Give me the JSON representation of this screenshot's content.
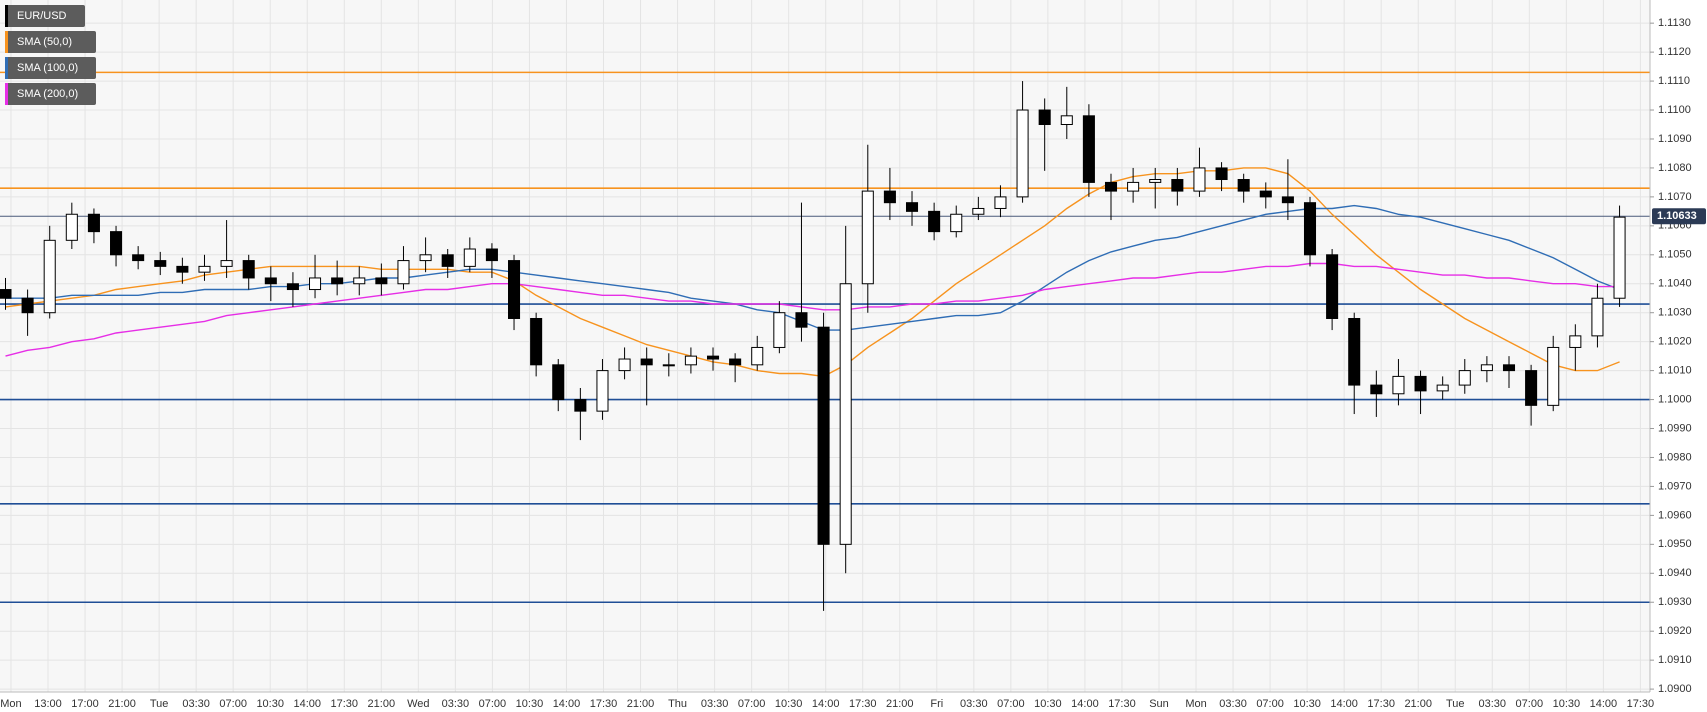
{
  "chart_data": {
    "type": "candlestick",
    "symbol": "EUR/USD",
    "time_labels": [
      "Mon",
      "13:00",
      "17:00",
      "21:00",
      "Tue",
      "03:30",
      "07:00",
      "10:30",
      "14:00",
      "17:30",
      "21:00",
      "Wed",
      "03:30",
      "07:00",
      "10:30",
      "14:00",
      "17:30",
      "21:00",
      "Thu",
      "03:30",
      "07:00",
      "10:30",
      "14:00",
      "17:30",
      "21:00",
      "Fri",
      "03:30",
      "07:00",
      "10:30",
      "14:00",
      "17:30",
      "Sun",
      "Mon",
      "03:30",
      "07:00",
      "10:30",
      "14:00",
      "17:30",
      "21:00",
      "Tue",
      "03:30",
      "07:00",
      "10:30",
      "14:00",
      "17:30"
    ],
    "open": [
      1.1038,
      1.1035,
      1.103,
      1.1055,
      1.1064,
      1.1058,
      1.105,
      1.1048,
      1.1046,
      1.1044,
      1.1046,
      1.1048,
      1.1042,
      1.104,
      1.1038,
      1.1042,
      1.104,
      1.1042,
      1.104,
      1.1048,
      1.105,
      1.1046,
      1.1052,
      1.1048,
      1.1028,
      1.1012,
      1.1,
      1.0996,
      1.101,
      1.1014,
      1.1012,
      1.1012,
      1.1015,
      1.1014,
      1.1012,
      1.1018,
      1.103,
      1.1025,
      1.095,
      1.104,
      1.1072,
      1.1068,
      1.1065,
      1.1058,
      1.1064,
      1.1066,
      1.107,
      1.11,
      1.1095,
      1.1098,
      1.1075,
      1.1072,
      1.1075,
      1.1076,
      1.1072,
      1.108,
      1.1076,
      1.1072,
      1.107,
      1.1068,
      1.105,
      1.1028,
      1.1005,
      1.1002,
      1.1008,
      1.1003,
      1.1005,
      1.101,
      1.1012,
      1.101,
      1.0998,
      1.1018,
      1.1022,
      1.1035
    ],
    "high": [
      1.1042,
      1.1038,
      1.106,
      1.1068,
      1.1066,
      1.106,
      1.1053,
      1.1051,
      1.1049,
      1.105,
      1.1062,
      1.105,
      1.1046,
      1.1044,
      1.105,
      1.1048,
      1.1046,
      1.1047,
      1.1053,
      1.1056,
      1.1052,
      1.1056,
      1.1054,
      1.105,
      1.103,
      1.1014,
      1.1004,
      1.1014,
      1.1018,
      1.1018,
      1.1016,
      1.1018,
      1.1018,
      1.1016,
      1.1022,
      1.1034,
      1.1068,
      1.103,
      1.106,
      1.1088,
      1.108,
      1.1072,
      1.1068,
      1.1067,
      1.107,
      1.1074,
      1.111,
      1.1104,
      1.1108,
      1.1102,
      1.1078,
      1.108,
      1.108,
      1.108,
      1.1087,
      1.1082,
      1.1078,
      1.1075,
      1.1083,
      1.107,
      1.1052,
      1.103,
      1.101,
      1.1014,
      1.101,
      1.1008,
      1.1014,
      1.1015,
      1.1015,
      1.1012,
      1.1022,
      1.1026,
      1.104,
      1.1067
    ],
    "low": [
      1.1031,
      1.1022,
      1.1028,
      1.1052,
      1.1054,
      1.1046,
      1.1045,
      1.1043,
      1.104,
      1.1041,
      1.1042,
      1.1038,
      1.1034,
      1.1032,
      1.1035,
      1.1036,
      1.1036,
      1.1036,
      1.1038,
      1.1044,
      1.1042,
      1.1044,
      1.1042,
      1.1024,
      1.1008,
      1.0996,
      1.0986,
      1.0993,
      1.1007,
      1.0998,
      1.1008,
      1.1009,
      1.101,
      1.1006,
      1.101,
      1.1016,
      1.102,
      1.0927,
      1.094,
      1.103,
      1.1062,
      1.106,
      1.1055,
      1.1056,
      1.1062,
      1.1063,
      1.1068,
      1.1079,
      1.109,
      1.107,
      1.1062,
      1.1068,
      1.1066,
      1.1067,
      1.107,
      1.1072,
      1.1068,
      1.1066,
      1.1062,
      1.1046,
      1.1024,
      1.0995,
      1.0994,
      1.0998,
      1.0995,
      1.1,
      1.1002,
      1.1006,
      1.1004,
      1.0991,
      1.0996,
      1.101,
      1.1018,
      1.1032
    ],
    "close": [
      1.1035,
      1.103,
      1.1055,
      1.1064,
      1.1058,
      1.105,
      1.1048,
      1.1046,
      1.1044,
      1.1046,
      1.1048,
      1.1042,
      1.104,
      1.1038,
      1.1042,
      1.104,
      1.1042,
      1.104,
      1.1048,
      1.105,
      1.1046,
      1.1052,
      1.1048,
      1.1028,
      1.1012,
      1.1,
      1.0996,
      1.101,
      1.1014,
      1.1012,
      1.1012,
      1.1015,
      1.1014,
      1.1012,
      1.1018,
      1.103,
      1.1025,
      1.095,
      1.104,
      1.1072,
      1.1068,
      1.1065,
      1.1058,
      1.1064,
      1.1066,
      1.107,
      1.11,
      1.1095,
      1.1098,
      1.1075,
      1.1072,
      1.1075,
      1.1076,
      1.1072,
      1.108,
      1.1076,
      1.1072,
      1.107,
      1.1068,
      1.105,
      1.1028,
      1.1005,
      1.1002,
      1.1008,
      1.1003,
      1.1005,
      1.101,
      1.1012,
      1.101,
      1.0998,
      1.1018,
      1.1022,
      1.1035,
      1.1063
    ],
    "series": [
      {
        "name": "SMA (50,0)",
        "color": "#f7931e",
        "values": [
          1.1032,
          1.1033,
          1.1034,
          1.1035,
          1.1036,
          1.1038,
          1.1039,
          1.104,
          1.1041,
          1.1043,
          1.1044,
          1.1045,
          1.1046,
          1.1046,
          1.1046,
          1.1046,
          1.1046,
          1.1045,
          1.1045,
          1.1045,
          1.1045,
          1.1044,
          1.1044,
          1.1041,
          1.1036,
          1.1032,
          1.1028,
          1.1025,
          1.1022,
          1.1019,
          1.1017,
          1.1015,
          1.1013,
          1.1012,
          1.101,
          1.1009,
          1.1009,
          1.1008,
          1.1012,
          1.1018,
          1.1023,
          1.1028,
          1.1034,
          1.104,
          1.1045,
          1.105,
          1.1055,
          1.106,
          1.1066,
          1.1071,
          1.1075,
          1.1077,
          1.1078,
          1.1078,
          1.1079,
          1.1079,
          1.108,
          1.108,
          1.1078,
          1.1072,
          1.1064,
          1.1057,
          1.105,
          1.1044,
          1.1038,
          1.1033,
          1.1028,
          1.1024,
          1.102,
          1.1016,
          1.1012,
          1.101,
          1.101,
          1.1013
        ]
      },
      {
        "name": "SMA (100,0)",
        "color": "#2f6db5",
        "values": [
          1.1035,
          1.1035,
          1.1035,
          1.1036,
          1.1036,
          1.1036,
          1.1036,
          1.1037,
          1.1037,
          1.1038,
          1.1038,
          1.1038,
          1.1039,
          1.1039,
          1.104,
          1.104,
          1.1041,
          1.1042,
          1.1042,
          1.1043,
          1.1044,
          1.1045,
          1.1045,
          1.1044,
          1.1043,
          1.1042,
          1.1041,
          1.104,
          1.1039,
          1.1038,
          1.1037,
          1.1035,
          1.1034,
          1.1033,
          1.1031,
          1.103,
          1.1027,
          1.1024,
          1.1024,
          1.1025,
          1.1026,
          1.1027,
          1.1028,
          1.1029,
          1.1029,
          1.103,
          1.1034,
          1.1039,
          1.1044,
          1.1048,
          1.1051,
          1.1053,
          1.1055,
          1.1056,
          1.1058,
          1.106,
          1.1062,
          1.1064,
          1.1065,
          1.1066,
          1.1066,
          1.1067,
          1.1066,
          1.1064,
          1.1063,
          1.1061,
          1.1059,
          1.1057,
          1.1055,
          1.1052,
          1.1049,
          1.1045,
          1.1041,
          1.1038
        ]
      },
      {
        "name": "SMA (200,0)",
        "color": "#e62ee6",
        "values": [
          1.1015,
          1.1017,
          1.1018,
          1.102,
          1.1021,
          1.1023,
          1.1024,
          1.1025,
          1.1026,
          1.1027,
          1.1029,
          1.103,
          1.1031,
          1.1032,
          1.1033,
          1.1034,
          1.1035,
          1.1036,
          1.1037,
          1.1038,
          1.1038,
          1.1039,
          1.104,
          1.104,
          1.1039,
          1.1038,
          1.1037,
          1.1036,
          1.1036,
          1.1035,
          1.1034,
          1.1034,
          1.1033,
          1.1033,
          1.1033,
          1.1033,
          1.1032,
          1.1031,
          1.1031,
          1.1032,
          1.1032,
          1.1033,
          1.1033,
          1.1034,
          1.1034,
          1.1035,
          1.1036,
          1.1038,
          1.1039,
          1.104,
          1.1041,
          1.1042,
          1.1042,
          1.1043,
          1.1044,
          1.1044,
          1.1045,
          1.1046,
          1.1046,
          1.1047,
          1.1047,
          1.1046,
          1.1046,
          1.1045,
          1.1044,
          1.1043,
          1.1043,
          1.1042,
          1.1042,
          1.1041,
          1.104,
          1.104,
          1.1039,
          1.1039
        ]
      }
    ],
    "levels": [
      {
        "value": 1.1113,
        "color": "#f7931e"
      },
      {
        "value": 1.1073,
        "color": "#f7931e"
      },
      {
        "value": 1.1033,
        "color": "#1f4e96"
      },
      {
        "value": 1.1,
        "color": "#1f4e96"
      },
      {
        "value": 1.0964,
        "color": "#1f4e96"
      },
      {
        "value": 1.093,
        "color": "#1f4e96"
      }
    ],
    "last_price": 1.10633,
    "up_color": "#ffffff",
    "down_color": "#000000",
    "ylim": [
      1.0899,
      1.1138
    ],
    "yticks": [
      {
        "value": 1.09,
        "label": "1.0900"
      },
      {
        "value": 1.091,
        "label": "1.0910"
      },
      {
        "value": 1.092,
        "label": "1.0920"
      },
      {
        "value": 1.093,
        "label": "1.0930"
      },
      {
        "value": 1.094,
        "label": "1.0940"
      },
      {
        "value": 1.095,
        "label": "1.0950"
      },
      {
        "value": 1.096,
        "label": "1.0960"
      },
      {
        "value": 1.097,
        "label": "1.0970"
      },
      {
        "value": 1.098,
        "label": "1.0980"
      },
      {
        "value": 1.099,
        "label": "1.0990"
      },
      {
        "value": 1.1,
        "label": "1.1000"
      },
      {
        "value": 1.101,
        "label": "1.1010"
      },
      {
        "value": 1.102,
        "label": "1.1020"
      },
      {
        "value": 1.103,
        "label": "1.1030"
      },
      {
        "value": 1.104,
        "label": "1.1040"
      },
      {
        "value": 1.105,
        "label": "1.1050"
      },
      {
        "value": 1.106,
        "label": "1.1060"
      },
      {
        "value": 1.107,
        "label": "1.1070"
      },
      {
        "value": 1.108,
        "label": "1.1080"
      },
      {
        "value": 1.109,
        "label": "1.1090"
      },
      {
        "value": 1.11,
        "label": "1.1100"
      },
      {
        "value": 1.111,
        "label": "1.1110"
      },
      {
        "value": 1.112,
        "label": "1.1120"
      },
      {
        "value": 1.113,
        "label": "1.1130"
      }
    ],
    "grid": true
  }
}
